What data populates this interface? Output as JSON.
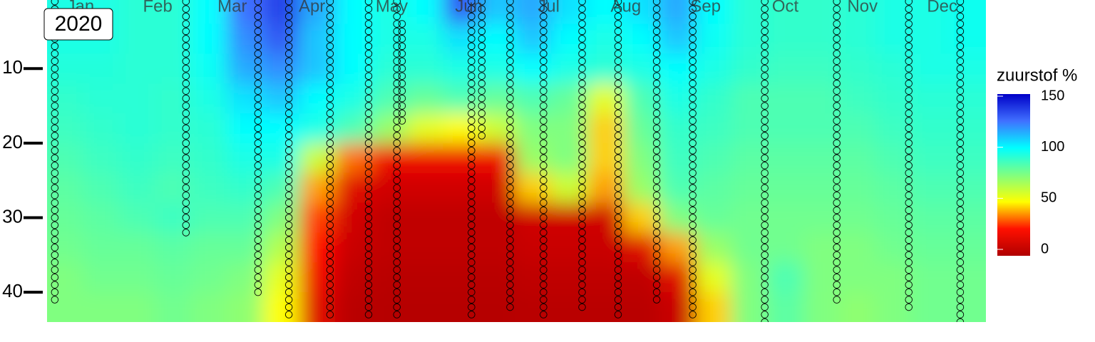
{
  "chart_data": {
    "type": "heatmap",
    "title": "2020",
    "x": [
      7,
      21,
      35,
      49,
      63,
      77,
      91,
      105,
      119,
      133,
      147,
      161,
      175,
      189,
      203,
      217,
      231,
      245,
      259,
      273,
      287,
      301,
      315,
      329,
      343,
      357
    ],
    "y": [
      2,
      6,
      10,
      14,
      18,
      22,
      26,
      30,
      34,
      38,
      42
    ],
    "z": [
      [
        95,
        95,
        92,
        92,
        100,
        125,
        135,
        115,
        100,
        95,
        100,
        130,
        110,
        115,
        105,
        100,
        105,
        115,
        100,
        92,
        90,
        90,
        92,
        95,
        95,
        97
      ],
      [
        95,
        95,
        92,
        92,
        100,
        120,
        130,
        110,
        100,
        95,
        95,
        105,
        100,
        110,
        100,
        95,
        100,
        110,
        98,
        92,
        90,
        90,
        92,
        95,
        95,
        97
      ],
      [
        93,
        93,
        92,
        92,
        98,
        115,
        120,
        110,
        100,
        92,
        92,
        95,
        95,
        100,
        95,
        92,
        95,
        100,
        95,
        90,
        88,
        88,
        90,
        92,
        95,
        95
      ],
      [
        90,
        92,
        92,
        90,
        95,
        105,
        110,
        100,
        95,
        85,
        80,
        85,
        80,
        85,
        80,
        55,
        85,
        95,
        90,
        85,
        85,
        85,
        88,
        90,
        92,
        92
      ],
      [
        88,
        90,
        92,
        90,
        92,
        100,
        100,
        95,
        85,
        70,
        55,
        50,
        60,
        75,
        75,
        45,
        80,
        90,
        88,
        85,
        85,
        85,
        85,
        88,
        90,
        90
      ],
      [
        85,
        88,
        90,
        88,
        90,
        95,
        95,
        60,
        35,
        20,
        20,
        20,
        20,
        70,
        75,
        45,
        75,
        88,
        85,
        82,
        82,
        82,
        82,
        85,
        88,
        88
      ],
      [
        82,
        85,
        88,
        85,
        88,
        90,
        85,
        40,
        15,
        10,
        10,
        10,
        10,
        45,
        60,
        40,
        70,
        85,
        82,
        80,
        80,
        80,
        80,
        82,
        85,
        85
      ],
      [
        80,
        82,
        85,
        88,
        85,
        85,
        75,
        30,
        10,
        5,
        5,
        5,
        5,
        10,
        10,
        10,
        45,
        75,
        80,
        78,
        78,
        78,
        78,
        80,
        82,
        82
      ],
      [
        78,
        80,
        80,
        82,
        80,
        80,
        65,
        25,
        8,
        5,
        5,
        5,
        5,
        8,
        8,
        8,
        15,
        40,
        70,
        78,
        78,
        75,
        75,
        78,
        80,
        80
      ],
      [
        75,
        78,
        78,
        80,
        78,
        75,
        55,
        20,
        5,
        3,
        3,
        3,
        3,
        5,
        5,
        5,
        5,
        15,
        55,
        75,
        85,
        75,
        75,
        75,
        78,
        78
      ],
      [
        75,
        75,
        75,
        78,
        75,
        72,
        50,
        15,
        3,
        2,
        2,
        2,
        2,
        3,
        3,
        3,
        3,
        8,
        45,
        75,
        82,
        75,
        72,
        75,
        78,
        78
      ]
    ],
    "xlim": [
      0,
      365
    ],
    "xticks": [
      {
        "value": 13,
        "label": "Jan"
      },
      {
        "value": 43,
        "label": "Feb"
      },
      {
        "value": 72,
        "label": "Mar"
      },
      {
        "value": 103,
        "label": "Apr"
      },
      {
        "value": 134,
        "label": "May"
      },
      {
        "value": 164,
        "label": "Jun"
      },
      {
        "value": 195,
        "label": "Jul"
      },
      {
        "value": 225,
        "label": "Aug"
      },
      {
        "value": 256,
        "label": "Sep"
      },
      {
        "value": 287,
        "label": "Oct"
      },
      {
        "value": 317,
        "label": "Nov"
      },
      {
        "value": 348,
        "label": "Dec"
      }
    ],
    "ylim": [
      0.8,
      44
    ],
    "yticks": [
      10,
      20,
      30,
      40
    ],
    "legend_title": "zuurstof %",
    "zlim": [
      0,
      150
    ],
    "zticks": [
      0,
      50,
      100,
      150
    ],
    "colorscale": [
      [
        0,
        "#b00000"
      ],
      [
        25,
        "#ff1000"
      ],
      [
        50,
        "#ffff00"
      ],
      [
        75,
        "#80ff80"
      ],
      [
        100,
        "#00ffff"
      ],
      [
        125,
        "#4070ff"
      ],
      [
        150,
        "#0000c8"
      ]
    ],
    "profiles": [
      {
        "x": 3,
        "depths": [
          1,
          41
        ]
      },
      {
        "x": 54,
        "depths": [
          1,
          32
        ]
      },
      {
        "x": 82,
        "depths": [
          1,
          40
        ]
      },
      {
        "x": 94,
        "depths": [
          1,
          43
        ]
      },
      {
        "x": 110,
        "depths": [
          1,
          43
        ]
      },
      {
        "x": 125,
        "depths": [
          1,
          43
        ]
      },
      {
        "x": 136,
        "depths": [
          1,
          43
        ]
      },
      {
        "x": 138,
        "depths": [
          4,
          17
        ]
      },
      {
        "x": 165,
        "depths": [
          1,
          43
        ]
      },
      {
        "x": 169,
        "depths": [
          1,
          19
        ]
      },
      {
        "x": 180,
        "depths": [
          1,
          42
        ]
      },
      {
        "x": 193,
        "depths": [
          1,
          43
        ]
      },
      {
        "x": 208,
        "depths": [
          1,
          42
        ]
      },
      {
        "x": 222,
        "depths": [
          1,
          43
        ]
      },
      {
        "x": 237,
        "depths": [
          1,
          41
        ]
      },
      {
        "x": 251,
        "depths": [
          1,
          43
        ]
      },
      {
        "x": 279,
        "depths": [
          1,
          44
        ]
      },
      {
        "x": 307,
        "depths": [
          1,
          41
        ]
      },
      {
        "x": 335,
        "depths": [
          1,
          42
        ]
      },
      {
        "x": 355,
        "depths": [
          1,
          44
        ]
      }
    ]
  }
}
